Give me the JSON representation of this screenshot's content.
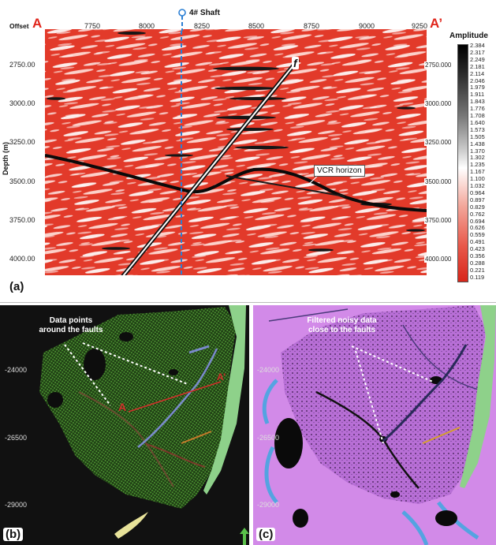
{
  "panel_a": {
    "offset_label": "Offset",
    "section_start": "A",
    "section_end": "A’",
    "x_ticks": [
      "7750",
      "8000",
      "8250",
      "8500",
      "8750",
      "9000",
      "9250"
    ],
    "shaft_label": "4# Shaft",
    "y_axis_label": "Depth (m)",
    "depth_ticks_left": [
      "2750.00",
      "3000.00",
      "3250.00",
      "3500.00",
      "3750.00",
      "4000.00"
    ],
    "depth_ticks_right": [
      "2750.000",
      "3000.000",
      "3250.000",
      "3500.000",
      "3750.000",
      "4000.000"
    ],
    "fault_label": "f",
    "horizon_label": "VCR horizon",
    "panel_label": "(a)",
    "colorbar_title": "Amplitude",
    "colorbar_values": [
      "2.384",
      "2.317",
      "2.249",
      "2.181",
      "2.114",
      "2.046",
      "1.979",
      "1.911",
      "1.843",
      "1.776",
      "1.708",
      "1.640",
      "1.573",
      "1.505",
      "1.438",
      "1.370",
      "1.302",
      "1.235",
      "1.167",
      "1.100",
      "1.032",
      "0.964",
      "0.897",
      "0.829",
      "0.762",
      "0.694",
      "0.626",
      "0.559",
      "0.491",
      "0.423",
      "0.356",
      "0.288",
      "0.221",
      "0.119"
    ],
    "colors": {
      "section_red": "#e23a2a",
      "horizon": "#0a0a0a",
      "shaft": "#2b7fd4"
    }
  },
  "panel_b": {
    "panel_label": "(b)",
    "y_ticks": [
      "-24000",
      "-26500",
      "-29000"
    ],
    "callout": "Data points\naround the faults",
    "point_a": "A",
    "point_a_prime": "A’",
    "colors": {
      "points": "#3f7a2a",
      "background": "#111111"
    }
  },
  "panel_c": {
    "panel_label": "(c)",
    "y_ticks": [
      "-24000",
      "-26500",
      "-29000"
    ],
    "callout": "Filtered noisy data\nclose to the faults",
    "colors": {
      "surface": "#c77be0",
      "background": "#1a1030"
    }
  }
}
